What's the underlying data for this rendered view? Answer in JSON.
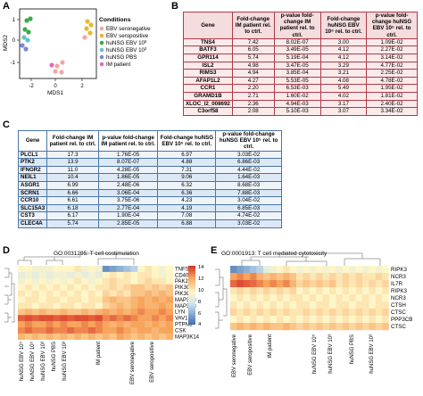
{
  "panels": {
    "a": "A",
    "b": "B",
    "c": "C",
    "d": "D",
    "e": "E"
  },
  "pca": {
    "xlabel": "MDS1",
    "ylabel": "MDS2",
    "xticks": [
      "-2",
      "0",
      "2"
    ],
    "yticks": [
      "1",
      "0",
      "-1"
    ],
    "legend_title": "Conditions",
    "legend": [
      {
        "label": "EBV seronegative",
        "color": "#f4a6a6"
      },
      {
        "label": "EBV seropositive",
        "color": "#e8b830"
      },
      {
        "label": "huNSG EBV 10",
        "sup": "5",
        "color": "#3caa4a"
      },
      {
        "label": "huNSG EBV 10",
        "sup": "3",
        "color": "#5fc4c8"
      },
      {
        "label": "huNSG PBS",
        "color": "#7a8ad8"
      },
      {
        "label": "IM patient",
        "color": "#e06cc0"
      }
    ]
  },
  "tableB": {
    "headers": [
      "Gene",
      "Fold-change IM patient rel. to ctrl.",
      "p-value fold-change IM patient rel. to ctrl.",
      "Fold-change huNSG EBV 10⁵ rel. to ctrl.",
      "p-value fold-change huNSG EBV 10⁵ rel. to ctrl."
    ],
    "rows": [
      [
        "TNS4",
        "7.42",
        "8.02E-07",
        "3.00",
        "1.09E-02"
      ],
      [
        "BATF3",
        "6.05",
        "3.49E-05",
        "4.12",
        "2.27E-02"
      ],
      [
        "GPR114",
        "5.74",
        "5.19E-04",
        "4.12",
        "3.14E-02"
      ],
      [
        "ISL2",
        "4.98",
        "3.47E-05",
        "3.29",
        "4.77E-02"
      ],
      [
        "RIMS3",
        "4.94",
        "3.85E-04",
        "3.21",
        "2.25E-02"
      ],
      [
        "AFAP1L2",
        "4.27",
        "5.53E-05",
        "4.08",
        "4.78E-02"
      ],
      [
        "CCR1",
        "2.20",
        "6.53E-03",
        "5.49",
        "1.95E-02"
      ],
      [
        "GRAMD1B",
        "2.71",
        "1.60E-02",
        "4.02",
        "1.81E-02"
      ],
      [
        "XLOC_l2_008692",
        "2.36",
        "4.94E-03",
        "3.17",
        "2.40E-02"
      ],
      [
        "C3orf58",
        "2.08",
        "5.10E-03",
        "3.07",
        "3.34E-02"
      ]
    ]
  },
  "tableC": {
    "headers": [
      "Gene",
      "Fold-change IM patient rel. to ctrl.",
      "p-value fold-change IM patient rel. to ctrl.",
      "Fold-change huNSG EBV 10⁵ rel. to ctrl.",
      "p-value fold-change huNSG EBV 10⁵ rel. to ctrl."
    ],
    "rows": [
      [
        "PLCL1",
        "17.3",
        "1.76E-05",
        "6.97",
        "3.03E-02"
      ],
      [
        "PTK2",
        "13.9",
        "8.07E-07",
        "4.88",
        "6.86E-03"
      ],
      [
        "IFNGR2",
        "11.0",
        "4.28E-05",
        "7.31",
        "4.44E-02"
      ],
      [
        "NEIL1",
        "10.4",
        "1.86E-05",
        "9.06",
        "1.64E-03"
      ],
      [
        "ASGR1",
        "6.99",
        "2.48E-06",
        "6.32",
        "8.68E-03"
      ],
      [
        "SCRN1",
        "6.66",
        "3.06E-04",
        "6.36",
        "7.88E-03"
      ],
      [
        "CCR10",
        "6.61",
        "3.75E-06",
        "4.23",
        "3.04E-02"
      ],
      [
        "SLC15A3",
        "6.18",
        "2.77E-04",
        "4.19",
        "6.85E-03"
      ],
      [
        "CST3",
        "6.17",
        "1.90E-04",
        "7.08",
        "4.74E-02"
      ],
      [
        "CLEC4A",
        "5.74",
        "2.85E-05",
        "6.88",
        "3.03E-02"
      ]
    ]
  },
  "heatD": {
    "title": "GO:0031295: T cell costimulation",
    "genes": [
      "TNFSF4",
      "CD40L",
      "PAK2",
      "PIK3CA",
      "PIK3CA",
      "MAP3K8",
      "MAP3K8",
      "LYN",
      "VAV1",
      "PTPN6",
      "CSK",
      "MAP3K14"
    ],
    "samples": [
      "huNSG EBV 10⁵",
      "huNSG EBV 10⁵",
      "huNSG EBV 10³",
      "huNSG PBS",
      "huNSG EBV 10³",
      "IM patient",
      "EBV seronegative",
      "EBV seropositive"
    ],
    "scale": [
      "14",
      "12",
      "10",
      "8",
      "6",
      "4"
    ]
  },
  "heatE": {
    "title": "GO:0001913: T cell mediated cytotoxicity",
    "genes": [
      "RIPK3",
      "NCR3",
      "IL7R",
      "RIPK3",
      "NCR3",
      "CTSH",
      "CTSC",
      "PPP3CB",
      "CTSC"
    ],
    "samples": [
      "EBV seronegative",
      "EBV seropositive",
      "IM patient",
      "huNSG EBV 10⁵",
      "huNSG EBV 10³",
      "huNSG PBS",
      "huNSG EBV 10³"
    ]
  }
}
